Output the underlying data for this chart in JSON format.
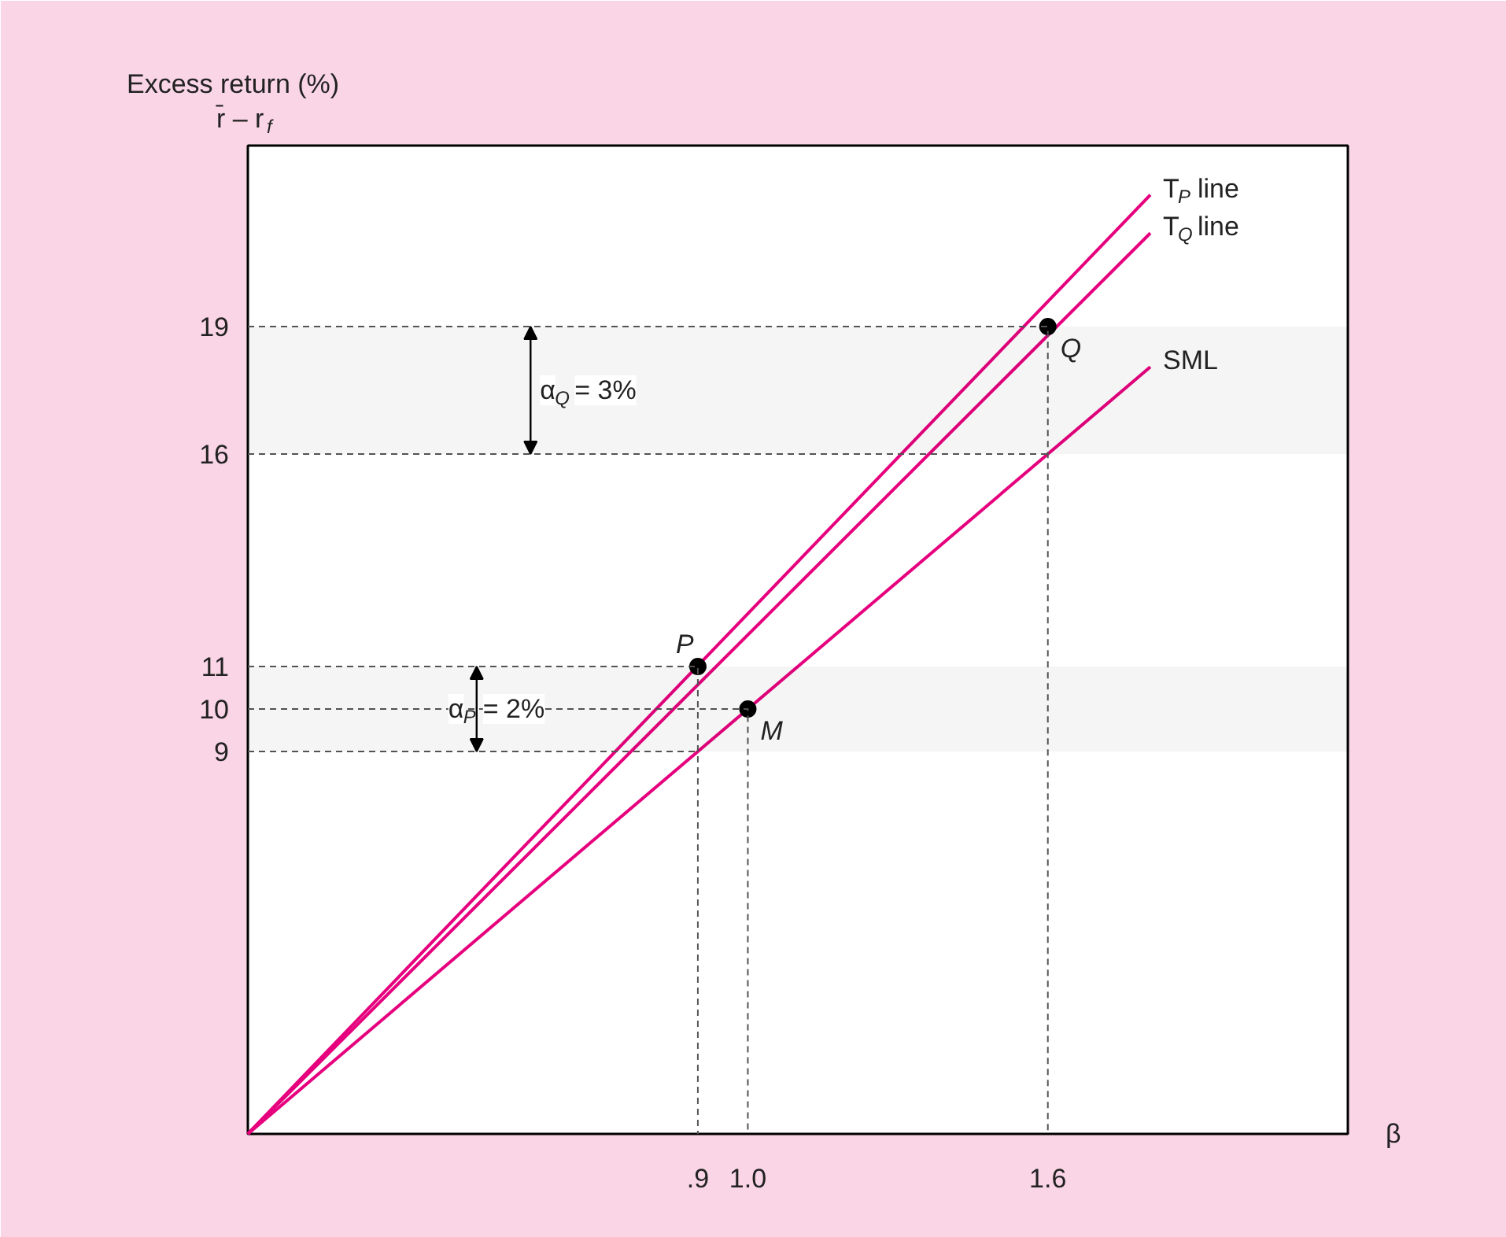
{
  "chart_data": {
    "type": "line",
    "ylabel": "Excess return (%)",
    "xlabel": "β",
    "annotations": [
      "r̄ – r$_{f}$",
      {
        "text": "P",
        "x": 0.9,
        "y": 11
      },
      {
        "text": "M",
        "x": 1.0,
        "y": 10
      },
      {
        "text": "Q",
        "x": 1.6,
        "y": 19
      }
    ],
    "bands": [
      {
        "axis": "y",
        "from": 16,
        "to": 19,
        "color": "#000000",
        "label": "α$_{Q}$ = 3%"
      },
      {
        "axis": "y",
        "from": 9,
        "to": 11,
        "color": "#000000",
        "label": "α$_{P}$ = 2%"
      }
    ],
    "series": [
      {
        "name": "T$_{P}$ line",
        "color": "#e6007e",
        "x": [
          0,
          1.805
        ],
        "values": [
          0,
          22.1
        ]
      },
      {
        "name": "T$_{Q}$ line",
        "color": "#e6007e",
        "x": [
          0,
          1.805
        ],
        "values": [
          0,
          21.2
        ]
      },
      {
        "name": "SML",
        "color": "#e6007e",
        "x": [
          0,
          1.805
        ],
        "values": [
          0,
          18.05
        ]
      },
      {
        "type": "scatter",
        "marker": "circle",
        "color": "#000000",
        "x": [
          0.9,
          1.0,
          1.6
        ],
        "values": [
          11,
          10,
          19
        ]
      },
      {
        "color": "#555555",
        "line_style": "dashed",
        "x": [
          0,
          1.6,
          1.6
        ],
        "values": [
          19,
          19,
          0
        ]
      },
      {
        "color": "#555555",
        "line_style": "dashed",
        "x": [
          0,
          1.6
        ],
        "values": [
          16,
          16
        ]
      },
      {
        "color": "#555555",
        "line_style": "dashed",
        "x": [
          0,
          0.9,
          0.9
        ],
        "values": [
          11,
          11,
          0
        ]
      },
      {
        "color": "#555555",
        "line_style": "dashed",
        "x": [
          0,
          1.0,
          1.0
        ],
        "values": [
          10,
          10,
          0
        ]
      },
      {
        "color": "#555555",
        "line_style": "dashed",
        "x": [
          0,
          0.9
        ],
        "values": [
          9,
          9
        ]
      }
    ],
    "xlim": [
      0,
      2.2
    ],
    "ylim": [
      0,
      23.26
    ],
    "xticks": [
      {
        "value": 0.9,
        "label": ".9"
      },
      {
        "value": 1.0,
        "label": "1.0"
      },
      1.6
    ],
    "yticks": [
      9,
      10,
      11,
      16,
      19
    ],
    "grid": false
  }
}
